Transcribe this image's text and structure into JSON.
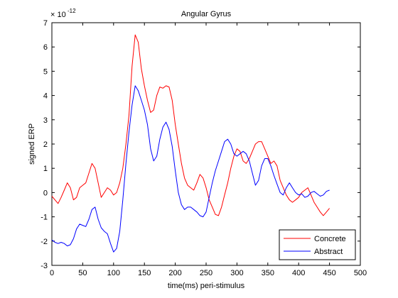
{
  "chart_data": {
    "type": "line",
    "title": "Angular Gyrus",
    "xlabel": "time(ms) peri-stimulus",
    "ylabel": "signed ERP",
    "y_multiplier_base": "× 10",
    "y_multiplier_exponent": "-12",
    "xlim": [
      0,
      500
    ],
    "ylim": [
      -3,
      7
    ],
    "xticks": [
      0,
      50,
      100,
      150,
      200,
      250,
      300,
      350,
      400,
      450,
      500
    ],
    "yticks": [
      -3,
      -2,
      -1,
      0,
      1,
      2,
      3,
      4,
      5,
      6,
      7
    ],
    "grid": false,
    "legend_position": "bottom-right",
    "series": [
      {
        "name": "Concrete",
        "color": "#ff0000",
        "x": [
          0,
          5,
          10,
          15,
          20,
          25,
          30,
          35,
          40,
          45,
          50,
          55,
          60,
          65,
          70,
          75,
          80,
          85,
          90,
          95,
          100,
          105,
          110,
          115,
          120,
          125,
          130,
          135,
          140,
          145,
          150,
          155,
          160,
          165,
          170,
          175,
          180,
          185,
          190,
          195,
          200,
          205,
          210,
          215,
          220,
          225,
          230,
          235,
          240,
          245,
          250,
          255,
          260,
          265,
          270,
          275,
          280,
          285,
          290,
          295,
          300,
          305,
          310,
          315,
          320,
          325,
          330,
          335,
          340,
          345,
          350,
          355,
          360,
          365,
          370,
          375,
          380,
          385,
          390,
          395,
          400,
          405,
          410,
          415,
          420,
          425,
          430,
          435,
          440,
          445,
          450
        ],
        "values": [
          -0.15,
          -0.3,
          -0.45,
          -0.2,
          0.1,
          0.4,
          0.2,
          -0.3,
          -0.2,
          0.2,
          0.3,
          0.4,
          0.8,
          1.2,
          1.0,
          0.4,
          -0.2,
          0.0,
          0.2,
          0.1,
          -0.1,
          0.0,
          0.4,
          1.0,
          2.0,
          3.2,
          5.2,
          6.5,
          6.2,
          5.1,
          4.4,
          3.8,
          3.3,
          3.4,
          4.0,
          4.35,
          4.3,
          4.4,
          4.35,
          3.8,
          2.8,
          2.0,
          1.2,
          0.6,
          0.3,
          0.2,
          0.1,
          0.4,
          0.75,
          0.6,
          0.2,
          -0.3,
          -0.6,
          -0.9,
          -0.95,
          -0.6,
          -0.1,
          0.4,
          1.0,
          1.5,
          1.8,
          1.7,
          1.3,
          1.2,
          1.4,
          1.7,
          2.0,
          2.1,
          2.1,
          1.8,
          1.5,
          1.2,
          1.3,
          1.1,
          0.5,
          0.2,
          -0.1,
          -0.3,
          -0.4,
          -0.3,
          -0.2,
          0.0,
          0.1,
          0.2,
          -0.1,
          -0.4,
          -0.6,
          -0.8,
          -0.95,
          -0.8,
          -0.65
        ]
      },
      {
        "name": "Abstract",
        "color": "#0000ff",
        "x": [
          0,
          5,
          10,
          15,
          20,
          25,
          30,
          35,
          40,
          45,
          50,
          55,
          60,
          65,
          70,
          75,
          80,
          85,
          90,
          95,
          100,
          105,
          110,
          115,
          120,
          125,
          130,
          135,
          140,
          145,
          150,
          155,
          160,
          165,
          170,
          175,
          180,
          185,
          190,
          195,
          200,
          205,
          210,
          215,
          220,
          225,
          230,
          235,
          240,
          245,
          250,
          255,
          260,
          265,
          270,
          275,
          280,
          285,
          290,
          295,
          300,
          305,
          310,
          315,
          320,
          325,
          330,
          335,
          340,
          345,
          350,
          355,
          360,
          365,
          370,
          375,
          380,
          385,
          390,
          395,
          400,
          405,
          410,
          415,
          420,
          425,
          430,
          435,
          440,
          445,
          450
        ],
        "values": [
          -1.95,
          -2.05,
          -2.1,
          -2.05,
          -2.1,
          -2.2,
          -2.15,
          -1.9,
          -1.5,
          -1.3,
          -1.35,
          -1.4,
          -1.1,
          -0.7,
          -0.6,
          -1.1,
          -1.45,
          -1.6,
          -1.7,
          -2.1,
          -2.45,
          -2.3,
          -1.6,
          -0.3,
          1.2,
          2.5,
          3.6,
          4.4,
          4.2,
          3.8,
          3.4,
          2.8,
          1.8,
          1.3,
          1.5,
          2.2,
          2.7,
          2.9,
          2.6,
          1.9,
          0.9,
          0.0,
          -0.5,
          -0.7,
          -0.6,
          -0.6,
          -0.7,
          -0.8,
          -0.95,
          -1.0,
          -0.8,
          -0.2,
          0.4,
          0.9,
          1.3,
          1.7,
          2.1,
          2.2,
          2.0,
          1.6,
          1.5,
          1.6,
          1.7,
          1.6,
          1.3,
          0.8,
          0.3,
          0.5,
          1.1,
          1.4,
          1.4,
          1.1,
          0.7,
          0.35,
          0.0,
          -0.1,
          0.2,
          0.4,
          0.2,
          0.0,
          -0.1,
          -0.05,
          -0.2,
          -0.15,
          0.0,
          0.05,
          -0.05,
          -0.15,
          -0.1,
          0.05,
          0.1
        ]
      }
    ]
  }
}
